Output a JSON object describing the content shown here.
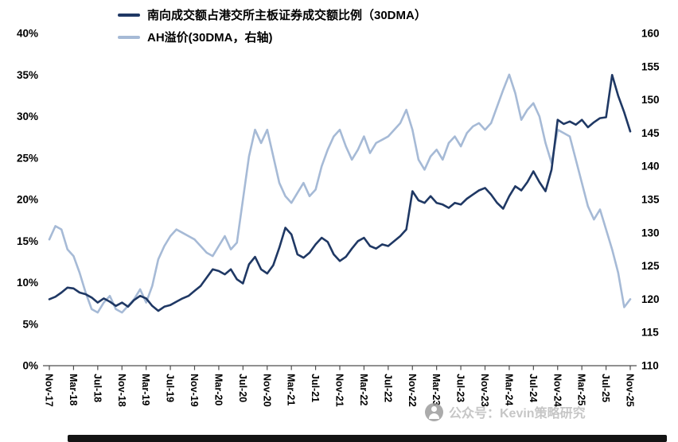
{
  "watermark": {
    "text": "公众号：Kevin策略研究"
  },
  "chart_data": {
    "type": "line",
    "title": "",
    "grid": false,
    "legend_position": "top",
    "x_start": "Nov-17",
    "x_end": "Nov-25",
    "x_unit": "month",
    "x_tick_labels": [
      "Nov-17",
      "Mar-18",
      "Jul-18",
      "Nov-18",
      "Mar-19",
      "Jul-19",
      "Nov-19",
      "Mar-20",
      "Jul-20",
      "Nov-20",
      "Mar-21",
      "Jul-21",
      "Nov-21",
      "Mar-22",
      "Jul-22",
      "Nov-22",
      "Mar-23",
      "Jul-23",
      "Nov-23",
      "Mar-24",
      "Jul-24",
      "Nov-24",
      "Mar-25",
      "Jul-25",
      "Nov-25"
    ],
    "left_axis": {
      "min": 0,
      "max": 40,
      "tick_labels": [
        "40%",
        "35%",
        "30%",
        "25%",
        "20%",
        "15%",
        "10%",
        "5%",
        "0%"
      ]
    },
    "right_axis": {
      "min": 110,
      "max": 160,
      "tick_labels": [
        "160",
        "155",
        "150",
        "145",
        "140",
        "135",
        "130",
        "125",
        "120",
        "115",
        "110"
      ]
    },
    "series": [
      {
        "name": "南向成交额占港交所主板证券成交额比例（30DMA）",
        "axis": "left",
        "unit": "%",
        "color": "#1F3864",
        "values": [
          8.0,
          8.3,
          8.8,
          9.4,
          9.3,
          8.8,
          8.6,
          8.2,
          7.6,
          8.1,
          7.7,
          7.2,
          7.6,
          7.1,
          7.9,
          8.4,
          8.1,
          7.2,
          6.6,
          7.1,
          7.3,
          7.7,
          8.1,
          8.4,
          9.0,
          9.6,
          10.6,
          11.6,
          11.4,
          11.0,
          11.6,
          10.4,
          9.9,
          12.2,
          13.1,
          11.6,
          11.1,
          12.1,
          14.2,
          16.6,
          15.8,
          13.4,
          13.0,
          13.6,
          14.6,
          15.4,
          14.9,
          13.4,
          12.6,
          13.1,
          14.1,
          15.0,
          15.4,
          14.4,
          14.1,
          14.6,
          14.4,
          15.0,
          15.6,
          16.4,
          21.0,
          19.9,
          19.6,
          20.4,
          19.6,
          19.4,
          19.0,
          19.6,
          19.4,
          20.1,
          20.6,
          21.1,
          21.4,
          20.6,
          19.6,
          18.9,
          20.4,
          21.6,
          21.1,
          22.1,
          23.4,
          22.1,
          21.0,
          23.6,
          29.6,
          29.1,
          29.4,
          29.0,
          29.6,
          28.7,
          29.3,
          29.8,
          29.9,
          35.0,
          32.5,
          30.5,
          28.2
        ]
      },
      {
        "name": "AH溢价(30DMA，右轴)",
        "axis": "right",
        "unit": "index",
        "color": "#A6BAD6",
        "values": [
          129.0,
          131.0,
          130.5,
          127.5,
          126.5,
          124.0,
          121.0,
          118.5,
          118.0,
          119.5,
          120.5,
          118.5,
          118.0,
          119.0,
          120.0,
          121.5,
          119.5,
          122.0,
          126.0,
          128.0,
          129.5,
          130.5,
          130.0,
          129.5,
          129.0,
          128.0,
          127.0,
          126.5,
          128.0,
          129.5,
          127.5,
          128.5,
          135.0,
          141.5,
          145.5,
          143.5,
          145.5,
          141.5,
          137.5,
          135.5,
          134.5,
          136.0,
          137.5,
          135.5,
          136.5,
          140.0,
          142.5,
          144.5,
          145.5,
          143.0,
          141.0,
          142.5,
          144.5,
          142.0,
          143.5,
          144.0,
          144.5,
          145.5,
          146.5,
          148.5,
          145.5,
          141.0,
          139.5,
          141.5,
          142.5,
          141.0,
          143.5,
          144.5,
          143.0,
          145.0,
          146.0,
          146.5,
          145.5,
          146.5,
          149.0,
          151.5,
          153.8,
          151.0,
          147.0,
          148.5,
          149.5,
          147.5,
          143.5,
          140.5,
          145.5,
          145.0,
          144.5,
          141.0,
          137.5,
          134.0,
          132.0,
          133.5,
          130.5,
          127.5,
          124.0,
          118.8,
          120.0
        ]
      }
    ]
  }
}
